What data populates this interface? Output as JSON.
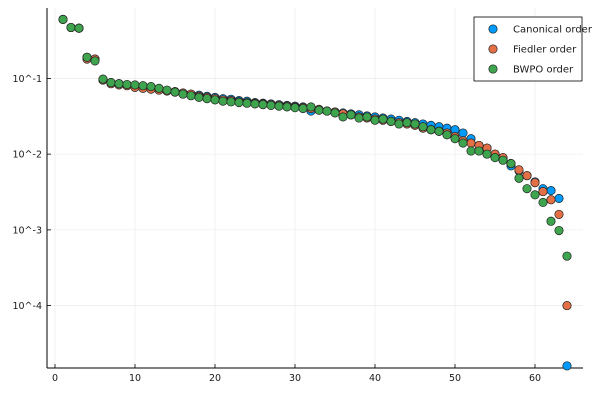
{
  "chart_data": {
    "type": "scatter",
    "title": "",
    "xlabel": "",
    "ylabel": "",
    "xlim": [
      -1,
      66
    ],
    "ylog": true,
    "ylim": [
      1.5e-05,
      0.85
    ],
    "grid": true,
    "legend_placement": "top-right",
    "x_ticks": [
      0,
      10,
      20,
      30,
      40,
      50,
      60
    ],
    "x_tick_labels": [
      "0",
      "10",
      "20",
      "30",
      "40",
      "50",
      "60"
    ],
    "y_ticks": [
      0.1,
      0.01,
      0.001,
      0.0001
    ],
    "y_tick_labels": [
      "10^-1",
      "10^-2",
      "10^-3",
      "10^-4"
    ],
    "series": [
      {
        "name": "Canonical order",
        "color": "#009AFA",
        "x": [
          1,
          2,
          3,
          4,
          5,
          6,
          7,
          8,
          9,
          10,
          11,
          12,
          13,
          14,
          15,
          16,
          17,
          18,
          19,
          20,
          21,
          22,
          23,
          24,
          25,
          26,
          27,
          28,
          29,
          30,
          31,
          32,
          33,
          34,
          35,
          36,
          37,
          38,
          39,
          40,
          41,
          42,
          43,
          44,
          45,
          46,
          47,
          48,
          49,
          50,
          51,
          52,
          53,
          54,
          55,
          56,
          57,
          58,
          59,
          60,
          61,
          62,
          63,
          64
        ],
        "y": [
          0.6,
          0.47,
          0.46,
          0.19,
          0.18,
          0.095,
          0.088,
          0.085,
          0.082,
          0.08,
          0.078,
          0.075,
          0.072,
          0.069,
          0.066,
          0.064,
          0.062,
          0.06,
          0.058,
          0.056,
          0.054,
          0.053,
          0.051,
          0.05,
          0.048,
          0.047,
          0.046,
          0.045,
          0.044,
          0.043,
          0.042,
          0.037,
          0.038,
          0.037,
          0.036,
          0.035,
          0.034,
          0.033,
          0.032,
          0.031,
          0.03,
          0.029,
          0.028,
          0.027,
          0.026,
          0.025,
          0.024,
          0.023,
          0.022,
          0.021,
          0.019,
          0.016,
          0.013,
          0.012,
          0.01,
          0.0085,
          0.007,
          0.006,
          0.0052,
          0.0043,
          0.0035,
          0.0033,
          0.0026,
          1.6e-05
        ]
      },
      {
        "name": "Fiedler order",
        "color": "#E26F46",
        "x": [
          1,
          2,
          3,
          4,
          5,
          6,
          7,
          8,
          9,
          10,
          11,
          12,
          13,
          14,
          15,
          16,
          17,
          18,
          19,
          20,
          21,
          22,
          23,
          24,
          25,
          26,
          27,
          28,
          29,
          30,
          31,
          32,
          33,
          34,
          35,
          36,
          37,
          38,
          39,
          40,
          41,
          42,
          43,
          44,
          45,
          46,
          47,
          48,
          49,
          50,
          51,
          52,
          53,
          54,
          55,
          56,
          57,
          58,
          59,
          60,
          61,
          62,
          63,
          64
        ],
        "y": [
          0.6,
          0.47,
          0.46,
          0.18,
          0.18,
          0.095,
          0.085,
          0.082,
          0.08,
          0.076,
          0.074,
          0.072,
          0.07,
          0.068,
          0.067,
          0.064,
          0.062,
          0.058,
          0.056,
          0.054,
          0.052,
          0.051,
          0.049,
          0.048,
          0.047,
          0.046,
          0.045,
          0.044,
          0.043,
          0.042,
          0.041,
          0.04,
          0.039,
          0.037,
          0.036,
          0.034,
          0.033,
          0.031,
          0.03,
          0.029,
          0.028,
          0.027,
          0.026,
          0.025,
          0.024,
          0.022,
          0.021,
          0.02,
          0.019,
          0.017,
          0.015,
          0.014,
          0.013,
          0.012,
          0.01,
          0.009,
          0.0075,
          0.0062,
          0.0052,
          0.0042,
          0.0032,
          0.0025,
          0.0016,
          0.0001
        ]
      },
      {
        "name": "BWPO order",
        "color": "#3EA44E",
        "x": [
          1,
          2,
          3,
          4,
          5,
          6,
          7,
          8,
          9,
          10,
          11,
          12,
          13,
          14,
          15,
          16,
          17,
          18,
          19,
          20,
          21,
          22,
          23,
          24,
          25,
          26,
          27,
          28,
          29,
          30,
          31,
          32,
          33,
          34,
          35,
          36,
          37,
          38,
          39,
          40,
          41,
          42,
          43,
          44,
          45,
          46,
          47,
          48,
          49,
          50,
          51,
          52,
          53,
          54,
          55,
          56,
          57,
          58,
          59,
          60,
          61,
          62,
          63,
          64
        ],
        "y": [
          0.6,
          0.47,
          0.46,
          0.19,
          0.17,
          0.098,
          0.088,
          0.085,
          0.083,
          0.082,
          0.08,
          0.078,
          0.074,
          0.07,
          0.066,
          0.062,
          0.059,
          0.056,
          0.054,
          0.052,
          0.05,
          0.049,
          0.048,
          0.047,
          0.046,
          0.045,
          0.044,
          0.043,
          0.042,
          0.041,
          0.04,
          0.042,
          0.038,
          0.037,
          0.035,
          0.031,
          0.033,
          0.03,
          0.031,
          0.028,
          0.029,
          0.027,
          0.025,
          0.026,
          0.025,
          0.023,
          0.021,
          0.02,
          0.018,
          0.016,
          0.014,
          0.011,
          0.011,
          0.01,
          0.009,
          0.0083,
          0.0075,
          0.0048,
          0.0035,
          0.0029,
          0.0023,
          0.0013,
          0.00098,
          0.00045
        ]
      }
    ]
  }
}
